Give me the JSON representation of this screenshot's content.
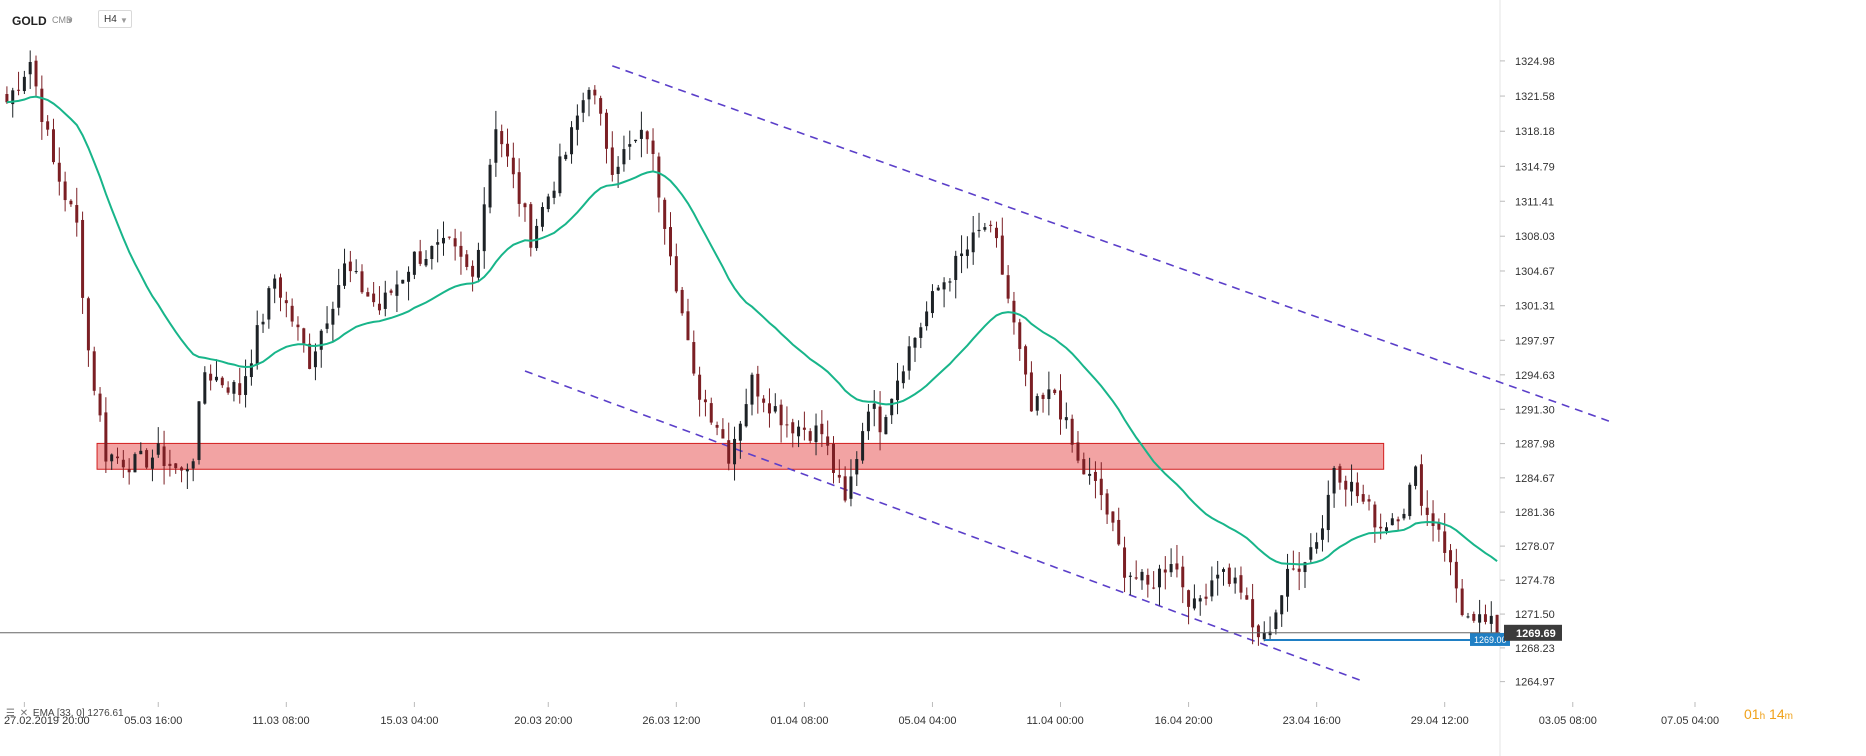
{
  "header": {
    "symbol": "GOLD",
    "instrument_type": "CMD",
    "timeframe": "H4"
  },
  "legend": {
    "indicator": "EMA",
    "params": "[33, 0]",
    "value": "1276.61"
  },
  "timer": {
    "hours": "01",
    "h_unit": "h",
    "minutes": "14",
    "m_unit": "m"
  },
  "colors": {
    "bull": "#1d2226",
    "bear": "#7b1f24",
    "ema": "#18b58a",
    "channel": "#5b3fc9",
    "zone_fill": "#f2a3a3",
    "zone_border": "#d21f1f",
    "support": "#1f7fc4",
    "price_tag": "#3b3b3b"
  },
  "chart_data": {
    "type": "candlestick",
    "ylim": [
      1263,
      1327
    ],
    "y_ticks": [
      "1324.98",
      "1321.58",
      "1318.18",
      "1314.79",
      "1311.41",
      "1308.03",
      "1304.67",
      "1301.31",
      "1297.97",
      "1294.63",
      "1291.30",
      "1287.98",
      "1284.67",
      "1281.36",
      "1278.07",
      "1274.78",
      "1271.50",
      "1268.23",
      "1264.97"
    ],
    "x_ticks": [
      "27.02.2019 20:00",
      "05.03 16:00",
      "11.03 08:00",
      "15.03 04:00",
      "20.03 20:00",
      "26.03 12:00",
      "01.04 08:00",
      "05.04 04:00",
      "11.04 00:00",
      "16.04 20:00",
      "23.04 16:00",
      "29.04 12:00",
      "03.05 08:00",
      "07.05 04:00"
    ],
    "price_path": [
      [
        0,
        1321
      ],
      [
        4,
        1325
      ],
      [
        8,
        1315
      ],
      [
        12,
        1309
      ],
      [
        14,
        1297
      ],
      [
        17,
        1287
      ],
      [
        22,
        1286
      ],
      [
        26,
        1287
      ],
      [
        30,
        1285
      ],
      [
        32,
        1287
      ],
      [
        34,
        1295
      ],
      [
        40,
        1293
      ],
      [
        46,
        1304
      ],
      [
        52,
        1296
      ],
      [
        58,
        1305
      ],
      [
        64,
        1301
      ],
      [
        70,
        1306
      ],
      [
        76,
        1307
      ],
      [
        80,
        1304
      ],
      [
        84,
        1319
      ],
      [
        90,
        1308
      ],
      [
        96,
        1316
      ],
      [
        100,
        1323
      ],
      [
        104,
        1315
      ],
      [
        110,
        1318
      ],
      [
        114,
        1307
      ],
      [
        118,
        1294
      ],
      [
        122,
        1290
      ],
      [
        124,
        1287
      ],
      [
        128,
        1294
      ],
      [
        134,
        1290
      ],
      [
        140,
        1289
      ],
      [
        144,
        1282
      ],
      [
        148,
        1292
      ],
      [
        150,
        1290
      ],
      [
        154,
        1296
      ],
      [
        160,
        1303
      ],
      [
        164,
        1306
      ],
      [
        168,
        1309
      ],
      [
        170,
        1307
      ],
      [
        172,
        1302
      ],
      [
        176,
        1291
      ],
      [
        180,
        1293
      ],
      [
        184,
        1286
      ],
      [
        188,
        1283
      ],
      [
        192,
        1276
      ],
      [
        196,
        1274
      ],
      [
        200,
        1277
      ],
      [
        204,
        1272
      ],
      [
        208,
        1276
      ],
      [
        212,
        1274
      ],
      [
        214,
        1270
      ],
      [
        216,
        1269
      ],
      [
        220,
        1275
      ],
      [
        224,
        1278
      ],
      [
        226,
        1280
      ],
      [
        228,
        1286
      ],
      [
        232,
        1283
      ],
      [
        236,
        1280
      ],
      [
        240,
        1282
      ],
      [
        242,
        1285
      ],
      [
        244,
        1281
      ],
      [
        246,
        1280
      ],
      [
        248,
        1276
      ],
      [
        250,
        1272
      ],
      [
        252,
        1270
      ],
      [
        254,
        1271
      ],
      [
        256,
        1269.69
      ]
    ],
    "ema": {
      "name": "EMA",
      "period": 33,
      "last": 1276.61
    },
    "last_price": "1269.69",
    "support": {
      "value": 1269.0,
      "label": "1269.00"
    },
    "resistance_zone": {
      "from": 1285.5,
      "to": 1288.0
    },
    "channel": {
      "upper": [
        [
          104,
          1324.5
        ],
        [
          276,
          1290
        ]
      ],
      "lower": [
        [
          89,
          1295
        ],
        [
          233,
          1265
        ]
      ]
    }
  }
}
